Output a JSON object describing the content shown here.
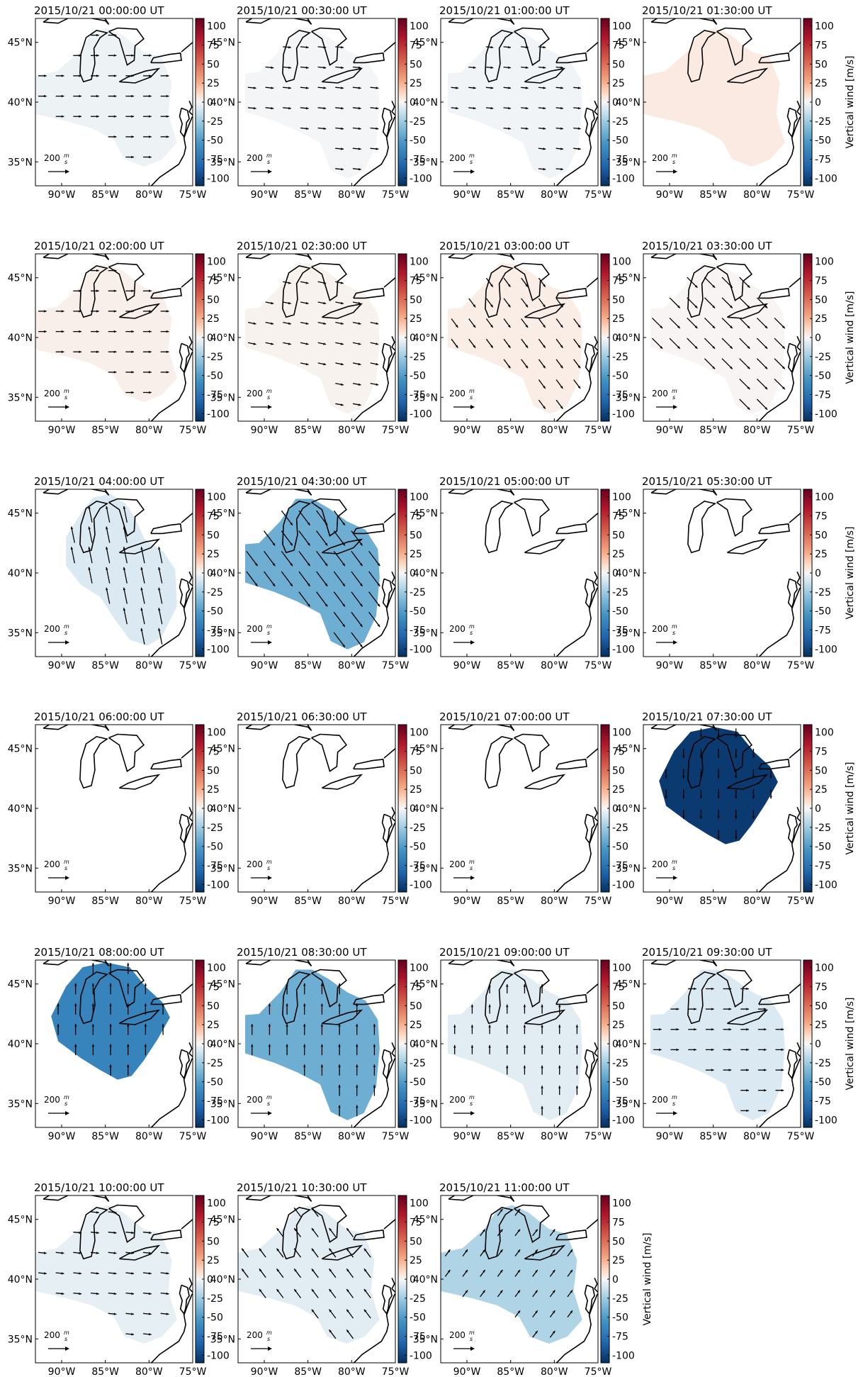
{
  "figure": {
    "colorbar_label": "Vertical wind [m/s]",
    "colorbar_ticks": [
      100,
      75,
      50,
      25,
      0,
      -25,
      -50,
      -75,
      -100
    ],
    "lat_ticks": [
      "45°N",
      "40°N",
      "35°N"
    ],
    "lon_ticks": [
      "90°W",
      "85°W",
      "80°W",
      "75°W"
    ],
    "scale_label": "200",
    "scale_unit_num": "m",
    "scale_unit_den": "s",
    "colors": {
      "strong_negative": "#053061",
      "negative": "#4393c3",
      "light_negative": "#92c5de",
      "neutral": "#f7f7f7",
      "light_positive": "#fddbc7",
      "strong_positive": "#67001f"
    }
  },
  "chart_data": {
    "type": "heatmap",
    "variable": "Vertical wind [m/s]",
    "clim": [
      -110,
      110
    ],
    "lon_range": [
      -93,
      -75
    ],
    "lat_range": [
      33,
      47
    ],
    "panels": [
      {
        "title": "2015/10/21 00:00:00 UT",
        "vertical_wind": -3,
        "region": "west",
        "arrow_u": 1.0,
        "arrow_v": 0.0,
        "arrow_scale": 0.45,
        "arrows": true
      },
      {
        "title": "2015/10/21 00:30:00 UT",
        "vertical_wind": -1,
        "region": "south",
        "arrow_u": 1.0,
        "arrow_v": -0.1,
        "arrow_scale": 0.45,
        "arrows": true
      },
      {
        "title": "2015/10/21 01:00:00 UT",
        "vertical_wind": -2,
        "region": "south",
        "arrow_u": 1.0,
        "arrow_v": -0.1,
        "arrow_scale": 0.4,
        "arrows": true
      },
      {
        "title": "2015/10/21 01:30:00 UT",
        "vertical_wind": 5,
        "region": "west",
        "arrow_u": 0,
        "arrow_v": 0,
        "arrow_scale": 0,
        "arrows": false
      },
      {
        "title": "2015/10/21 02:00:00 UT",
        "vertical_wind": 3,
        "region": "west",
        "arrow_u": 1.0,
        "arrow_v": 0.0,
        "arrow_scale": 0.45,
        "arrows": true
      },
      {
        "title": "2015/10/21 02:30:00 UT",
        "vertical_wind": 2,
        "region": "south",
        "arrow_u": 1.0,
        "arrow_v": -0.2,
        "arrow_scale": 0.45,
        "arrows": true
      },
      {
        "title": "2015/10/21 03:00:00 UT",
        "vertical_wind": 4,
        "region": "south",
        "arrow_u": 0.6,
        "arrow_v": -0.8,
        "arrow_scale": 0.6,
        "arrows": true
      },
      {
        "title": "2015/10/21 03:30:00 UT",
        "vertical_wind": 1,
        "region": "south",
        "arrow_u": 0.7,
        "arrow_v": -0.7,
        "arrow_scale": 0.8,
        "arrows": true
      },
      {
        "title": "2015/10/21 04:00:00 UT",
        "vertical_wind": -8,
        "region": "central",
        "arrow_u": -0.2,
        "arrow_v": 1.0,
        "arrow_scale": 0.9,
        "arrows": true
      },
      {
        "title": "2015/10/21 04:30:00 UT",
        "vertical_wind": -40,
        "region": "south",
        "arrow_u": 0.6,
        "arrow_v": -0.8,
        "arrow_scale": 1.0,
        "arrows": true
      },
      {
        "title": "2015/10/21 05:00:00 UT",
        "vertical_wind": null,
        "region": "none",
        "arrow_u": 0,
        "arrow_v": 0,
        "arrow_scale": 0,
        "arrows": false
      },
      {
        "title": "2015/10/21 05:30:00 UT",
        "vertical_wind": null,
        "region": "none",
        "arrow_u": 0,
        "arrow_v": 0,
        "arrow_scale": 0,
        "arrows": false
      },
      {
        "title": "2015/10/21 06:00:00 UT",
        "vertical_wind": null,
        "region": "none",
        "arrow_u": 0,
        "arrow_v": 0,
        "arrow_scale": 0,
        "arrows": false
      },
      {
        "title": "2015/10/21 06:30:00 UT",
        "vertical_wind": null,
        "region": "none",
        "arrow_u": 0,
        "arrow_v": 0,
        "arrow_scale": 0,
        "arrows": false
      },
      {
        "title": "2015/10/21 07:00:00 UT",
        "vertical_wind": null,
        "region": "none",
        "arrow_u": 0,
        "arrow_v": 0,
        "arrow_scale": 0,
        "arrows": false
      },
      {
        "title": "2015/10/21 07:30:00 UT",
        "vertical_wind": -105,
        "region": "north",
        "arrow_u": 0.0,
        "arrow_v": -1.0,
        "arrow_scale": 0.5,
        "arrows": true
      },
      {
        "title": "2015/10/21 08:00:00 UT",
        "vertical_wind": -65,
        "region": "north",
        "arrow_u": 0.0,
        "arrow_v": 1.0,
        "arrow_scale": 0.6,
        "arrows": true
      },
      {
        "title": "2015/10/21 08:30:00 UT",
        "vertical_wind": -40,
        "region": "south",
        "arrow_u": 0.0,
        "arrow_v": 1.0,
        "arrow_scale": 0.6,
        "arrows": true
      },
      {
        "title": "2015/10/21 09:00:00 UT",
        "vertical_wind": -6,
        "region": "south",
        "arrow_u": 0.0,
        "arrow_v": 1.0,
        "arrow_scale": 0.5,
        "arrows": true
      },
      {
        "title": "2015/10/21 09:30:00 UT",
        "vertical_wind": -8,
        "region": "south",
        "arrow_u": 1.0,
        "arrow_v": 0.0,
        "arrow_scale": 0.45,
        "arrows": true
      },
      {
        "title": "2015/10/21 10:00:00 UT",
        "vertical_wind": -5,
        "region": "west",
        "arrow_u": 1.0,
        "arrow_v": -0.1,
        "arrow_scale": 0.45,
        "arrows": true
      },
      {
        "title": "2015/10/21 10:30:00 UT",
        "vertical_wind": -6,
        "region": "west",
        "arrow_u": -0.6,
        "arrow_v": 0.8,
        "arrow_scale": 0.6,
        "arrows": true
      },
      {
        "title": "2015/10/21 11:00:00 UT",
        "vertical_wind": -20,
        "region": "west",
        "arrow_u": 0.6,
        "arrow_v": 0.8,
        "arrow_scale": 0.45,
        "arrows": true
      }
    ]
  }
}
